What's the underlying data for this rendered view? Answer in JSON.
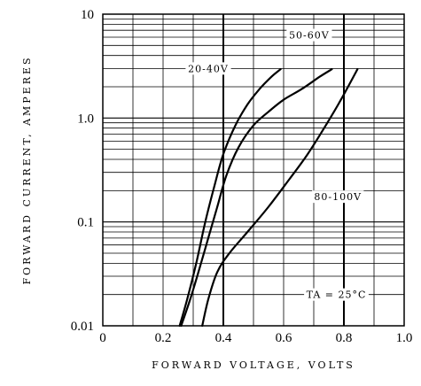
{
  "chart_data": {
    "type": "line",
    "y_scale": "log",
    "grid": true,
    "xlabel": "FORWARD VOLTAGE, VOLTS",
    "ylabel": "FORWARD CURRENT, AMPERES",
    "xlim": [
      0,
      1.0
    ],
    "ylim": [
      0.01,
      10
    ],
    "x_ticks": [
      "0",
      "0.2",
      "0.4",
      "0.6",
      "0.8",
      "1.0"
    ],
    "y_ticks": [
      "0.01",
      "0.1",
      "1.0",
      "10"
    ],
    "annotation": {
      "text": "TA = 25°C",
      "x": 0.775,
      "y": 0.02
    },
    "series": [
      {
        "name": "20-40V",
        "label_at": {
          "x": 0.35,
          "y": 3.0
        },
        "x": [
          0.255,
          0.28,
          0.31,
          0.34,
          0.37,
          0.4,
          0.44,
          0.48,
          0.52,
          0.56,
          0.59
        ],
        "y": [
          0.01,
          0.018,
          0.04,
          0.1,
          0.22,
          0.45,
          0.85,
          1.35,
          1.9,
          2.5,
          2.95
        ]
      },
      {
        "name": "50-60V",
        "label_at": {
          "x": 0.685,
          "y": 6.3
        },
        "x": [
          0.26,
          0.29,
          0.32,
          0.35,
          0.38,
          0.41,
          0.45,
          0.5,
          0.55,
          0.6,
          0.66,
          0.72,
          0.76
        ],
        "y": [
          0.01,
          0.018,
          0.035,
          0.07,
          0.14,
          0.28,
          0.52,
          0.85,
          1.15,
          1.5,
          1.9,
          2.5,
          2.95
        ]
      },
      {
        "name": "80-100V",
        "label_at": {
          "x": 0.78,
          "y": 0.175
        },
        "x": [
          0.33,
          0.35,
          0.38,
          0.42,
          0.48,
          0.55,
          0.62,
          0.68,
          0.74,
          0.79,
          0.845
        ],
        "y": [
          0.01,
          0.018,
          0.033,
          0.05,
          0.08,
          0.14,
          0.26,
          0.45,
          0.85,
          1.5,
          2.95
        ]
      }
    ]
  }
}
